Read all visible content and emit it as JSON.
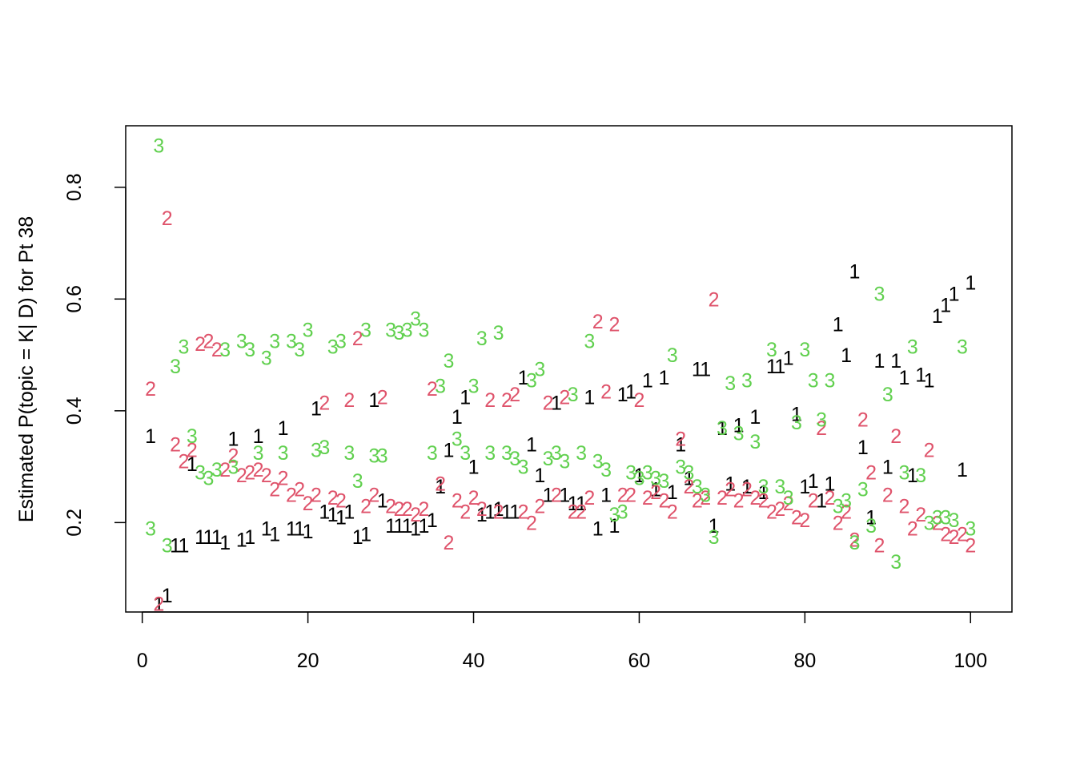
{
  "chart_data": {
    "type": "scatter",
    "title": "",
    "xlabel": "",
    "ylabel": "Estimated P(topic = K| D) for Pt 38",
    "xlim": [
      -2,
      105
    ],
    "ylim": [
      0.04,
      0.91
    ],
    "xticks": [
      0,
      20,
      40,
      60,
      80,
      100
    ],
    "yticks": [
      0.2,
      0.4,
      0.6,
      0.8
    ],
    "grid": false,
    "legend": "none",
    "marker": "series name printed as text glyph",
    "series": [
      {
        "name": "1",
        "color": "#000000",
        "x": [
          1,
          2,
          3,
          4,
          5,
          6,
          7,
          8,
          9,
          10,
          11,
          12,
          13,
          14,
          15,
          16,
          17,
          18,
          19,
          20,
          21,
          22,
          23,
          24,
          25,
          26,
          27,
          28,
          29,
          30,
          31,
          32,
          33,
          34,
          35,
          36,
          37,
          38,
          39,
          40,
          41,
          42,
          43,
          44,
          45,
          46,
          47,
          48,
          49,
          50,
          51,
          52,
          53,
          54,
          55,
          56,
          57,
          58,
          59,
          60,
          61,
          62,
          63,
          64,
          65,
          66,
          67,
          68,
          69,
          70,
          71,
          72,
          73,
          74,
          75,
          76,
          77,
          78,
          79,
          80,
          81,
          82,
          83,
          84,
          85,
          86,
          87,
          88,
          89,
          90,
          91,
          92,
          93,
          94,
          95,
          96,
          97,
          98,
          99,
          100
        ],
        "y": [
          0.355,
          0.055,
          0.07,
          0.16,
          0.16,
          0.305,
          0.175,
          0.175,
          0.175,
          0.165,
          0.35,
          0.17,
          0.175,
          0.355,
          0.19,
          0.18,
          0.37,
          0.19,
          0.19,
          0.185,
          0.405,
          0.22,
          0.215,
          0.21,
          0.22,
          0.175,
          0.18,
          0.42,
          0.24,
          0.195,
          0.195,
          0.195,
          0.19,
          0.195,
          0.205,
          0.265,
          0.33,
          0.39,
          0.425,
          0.3,
          0.215,
          0.22,
          0.225,
          0.22,
          0.22,
          0.46,
          0.34,
          0.285,
          0.25,
          0.415,
          0.25,
          0.235,
          0.235,
          0.425,
          0.19,
          0.25,
          0.195,
          0.43,
          0.435,
          0.285,
          0.455,
          0.26,
          0.46,
          0.255,
          0.34,
          0.28,
          0.475,
          0.475,
          0.195,
          0.37,
          0.27,
          0.375,
          0.265,
          0.39,
          0.255,
          0.48,
          0.48,
          0.495,
          0.395,
          0.265,
          0.275,
          0.24,
          0.27,
          0.555,
          0.5,
          0.65,
          0.335,
          0.21,
          0.49,
          0.3,
          0.49,
          0.46,
          0.285,
          0.465,
          0.455,
          0.57,
          0.59,
          0.61,
          0.295,
          0.63
        ]
      },
      {
        "name": "2",
        "color": "#DF536B",
        "x": [
          1,
          2,
          3,
          4,
          5,
          6,
          7,
          8,
          9,
          10,
          11,
          12,
          13,
          14,
          15,
          16,
          17,
          18,
          19,
          20,
          21,
          22,
          23,
          24,
          25,
          26,
          27,
          28,
          29,
          30,
          31,
          32,
          33,
          34,
          35,
          36,
          37,
          38,
          39,
          40,
          41,
          42,
          43,
          44,
          45,
          46,
          47,
          48,
          49,
          50,
          51,
          52,
          53,
          54,
          55,
          56,
          57,
          58,
          59,
          60,
          61,
          62,
          63,
          64,
          65,
          66,
          67,
          68,
          69,
          70,
          71,
          72,
          73,
          74,
          75,
          76,
          77,
          78,
          79,
          80,
          81,
          82,
          83,
          84,
          85,
          86,
          87,
          88,
          89,
          90,
          91,
          92,
          93,
          94,
          95,
          96,
          97,
          98,
          99,
          100
        ],
        "y": [
          0.44,
          0.055,
          0.745,
          0.34,
          0.31,
          0.33,
          0.52,
          0.525,
          0.51,
          0.295,
          0.32,
          0.285,
          0.29,
          0.295,
          0.285,
          0.26,
          0.28,
          0.25,
          0.26,
          0.235,
          0.25,
          0.415,
          0.245,
          0.24,
          0.42,
          0.53,
          0.23,
          0.25,
          0.425,
          0.23,
          0.225,
          0.225,
          0.215,
          0.225,
          0.44,
          0.27,
          0.165,
          0.24,
          0.22,
          0.245,
          0.225,
          0.42,
          0.22,
          0.42,
          0.43,
          0.22,
          0.2,
          0.23,
          0.415,
          0.25,
          0.425,
          0.22,
          0.22,
          0.245,
          0.56,
          0.435,
          0.555,
          0.25,
          0.25,
          0.42,
          0.245,
          0.255,
          0.24,
          0.22,
          0.35,
          0.265,
          0.24,
          0.245,
          0.6,
          0.245,
          0.26,
          0.24,
          0.26,
          0.245,
          0.24,
          0.22,
          0.225,
          0.235,
          0.21,
          0.205,
          0.24,
          0.37,
          0.245,
          0.2,
          0.22,
          0.17,
          0.385,
          0.29,
          0.16,
          0.25,
          0.355,
          0.23,
          0.19,
          0.215,
          0.33,
          0.2,
          0.18,
          0.175,
          0.18,
          0.16
        ]
      },
      {
        "name": "3",
        "color": "#61D04F",
        "x": [
          1,
          2,
          3,
          4,
          5,
          6,
          7,
          8,
          9,
          10,
          11,
          12,
          13,
          14,
          15,
          16,
          17,
          18,
          19,
          20,
          21,
          22,
          23,
          24,
          25,
          26,
          27,
          28,
          29,
          30,
          31,
          32,
          33,
          34,
          35,
          36,
          37,
          38,
          39,
          40,
          41,
          42,
          43,
          44,
          45,
          46,
          47,
          48,
          49,
          50,
          51,
          52,
          53,
          54,
          55,
          56,
          57,
          58,
          59,
          60,
          61,
          62,
          63,
          64,
          65,
          66,
          67,
          68,
          69,
          70,
          71,
          72,
          73,
          74,
          75,
          76,
          77,
          78,
          79,
          80,
          81,
          82,
          83,
          84,
          85,
          86,
          87,
          88,
          89,
          90,
          91,
          92,
          93,
          94,
          95,
          96,
          97,
          98,
          99,
          100
        ],
        "y": [
          0.19,
          0.875,
          0.16,
          0.48,
          0.515,
          0.355,
          0.29,
          0.28,
          0.295,
          0.51,
          0.3,
          0.525,
          0.51,
          0.325,
          0.495,
          0.525,
          0.325,
          0.525,
          0.51,
          0.545,
          0.33,
          0.335,
          0.515,
          0.525,
          0.325,
          0.275,
          0.545,
          0.32,
          0.32,
          0.545,
          0.54,
          0.545,
          0.565,
          0.545,
          0.325,
          0.445,
          0.49,
          0.35,
          0.325,
          0.445,
          0.53,
          0.325,
          0.54,
          0.325,
          0.315,
          0.3,
          0.455,
          0.475,
          0.315,
          0.325,
          0.31,
          0.43,
          0.325,
          0.525,
          0.31,
          0.295,
          0.215,
          0.22,
          0.29,
          0.28,
          0.29,
          0.28,
          0.275,
          0.5,
          0.3,
          0.29,
          0.265,
          0.25,
          0.175,
          0.37,
          0.45,
          0.36,
          0.455,
          0.345,
          0.265,
          0.51,
          0.265,
          0.245,
          0.38,
          0.51,
          0.455,
          0.385,
          0.455,
          0.23,
          0.24,
          0.165,
          0.26,
          0.195,
          0.61,
          0.43,
          0.13,
          0.29,
          0.515,
          0.285,
          0.2,
          0.21,
          0.21,
          0.205,
          0.515,
          0.19
        ]
      }
    ]
  }
}
